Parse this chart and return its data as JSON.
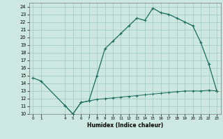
{
  "xlabel": "Humidex (Indice chaleur)",
  "background_color": "#cce8e0",
  "grid_color": "#a0c8c0",
  "line_color": "#1a6b5a",
  "xlim": [
    -0.5,
    23.5
  ],
  "ylim": [
    10,
    24.5
  ],
  "xticks": [
    0,
    1,
    4,
    5,
    6,
    7,
    8,
    9,
    10,
    11,
    12,
    13,
    14,
    15,
    16,
    17,
    18,
    19,
    20,
    21,
    22,
    23
  ],
  "yticks": [
    10,
    11,
    12,
    13,
    14,
    15,
    16,
    17,
    18,
    19,
    20,
    21,
    22,
    23,
    24
  ],
  "upper_line": [
    [
      0,
      14.7
    ],
    [
      1,
      14.3
    ],
    [
      4,
      11.1
    ],
    [
      5,
      10.0
    ],
    [
      6,
      11.5
    ],
    [
      7,
      11.7
    ],
    [
      8,
      15.0
    ],
    [
      9,
      18.5
    ],
    [
      10,
      19.5
    ],
    [
      11,
      20.5
    ],
    [
      12,
      21.5
    ],
    [
      13,
      22.5
    ],
    [
      14,
      22.2
    ],
    [
      15,
      23.8
    ],
    [
      16,
      23.2
    ],
    [
      17,
      23.0
    ],
    [
      18,
      22.5
    ],
    [
      19,
      22.0
    ],
    [
      20,
      21.5
    ],
    [
      21,
      19.3
    ],
    [
      22,
      16.5
    ],
    [
      23,
      13.0
    ]
  ],
  "lower_line": [
    [
      4,
      11.1
    ],
    [
      5,
      10.0
    ],
    [
      6,
      11.5
    ],
    [
      7,
      11.7
    ],
    [
      8,
      11.9
    ],
    [
      9,
      12.0
    ],
    [
      10,
      12.1
    ],
    [
      11,
      12.2
    ],
    [
      12,
      12.3
    ],
    [
      13,
      12.4
    ],
    [
      14,
      12.5
    ],
    [
      15,
      12.6
    ],
    [
      16,
      12.7
    ],
    [
      17,
      12.8
    ],
    [
      18,
      12.9
    ],
    [
      19,
      13.0
    ],
    [
      20,
      13.0
    ],
    [
      21,
      13.0
    ],
    [
      22,
      13.1
    ],
    [
      23,
      13.0
    ]
  ]
}
